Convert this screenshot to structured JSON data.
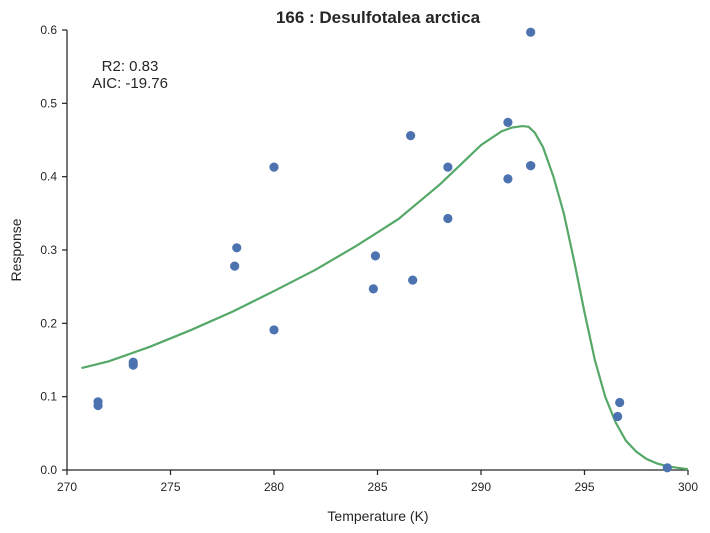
{
  "chart_data": {
    "type": "scatter",
    "title": "166 : Desulfotalea arctica",
    "xlabel": "Temperature (K)",
    "ylabel": "Response",
    "xlim": [
      270,
      300
    ],
    "ylim": [
      0.0,
      0.6
    ],
    "xticks": [
      "270",
      "275",
      "280",
      "285",
      "290",
      "295",
      "300"
    ],
    "yticks": [
      "0.0",
      "0.1",
      "0.2",
      "0.3",
      "0.4",
      "0.5",
      "0.6"
    ],
    "annotations": [
      "R2: 0.83",
      "AIC: -19.76"
    ],
    "grid": false,
    "colors": {
      "points": "#4c72b0",
      "fit": "#55a868",
      "axis": "#262626"
    },
    "series": [
      {
        "type": "scatter",
        "x": [
          271.5,
          271.5,
          273.2,
          273.2,
          278.1,
          278.2,
          280.0,
          280.0,
          284.8,
          284.9,
          286.6,
          286.7,
          288.4,
          288.4,
          291.3,
          291.3,
          292.4,
          292.4,
          292.4,
          296.6,
          296.7,
          299.0
        ],
        "y": [
          0.093,
          0.088,
          0.147,
          0.143,
          0.278,
          0.303,
          0.191,
          0.413,
          0.247,
          0.292,
          0.456,
          0.259,
          0.343,
          0.413,
          0.474,
          0.397,
          0.415,
          0.415,
          0.597,
          0.073,
          0.092,
          0.003
        ]
      },
      {
        "type": "line",
        "x": [
          270.7,
          272,
          274,
          276,
          278,
          280,
          282,
          284,
          286,
          288,
          289,
          290,
          291,
          291.5,
          292,
          292.3,
          292.6,
          293,
          293.5,
          294,
          294.5,
          295,
          295.5,
          296,
          296.5,
          297,
          297.5,
          298,
          298.5,
          299,
          299.5,
          300
        ],
        "y": [
          0.139,
          0.148,
          0.168,
          0.191,
          0.216,
          0.244,
          0.273,
          0.306,
          0.342,
          0.389,
          0.416,
          0.443,
          0.462,
          0.467,
          0.469,
          0.468,
          0.46,
          0.44,
          0.4,
          0.35,
          0.285,
          0.215,
          0.15,
          0.1,
          0.065,
          0.04,
          0.025,
          0.015,
          0.009,
          0.005,
          0.003,
          0.001
        ]
      }
    ]
  }
}
